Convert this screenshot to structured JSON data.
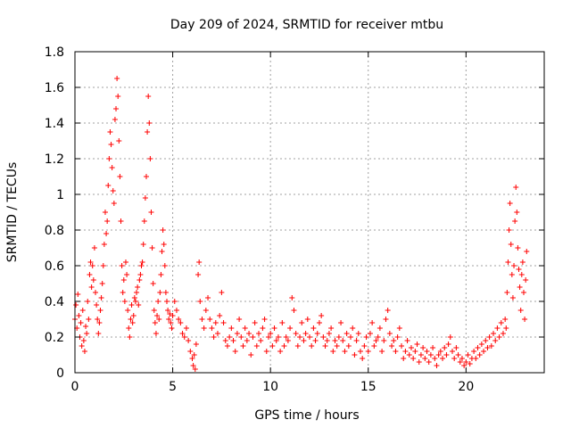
{
  "chart_data": {
    "type": "scatter",
    "title": "Day 209 of 2024, SRMTID for receiver mtbu",
    "xlabel": "GPS time / hours",
    "ylabel": "SRMTID / TECUs",
    "xlim": [
      0,
      24
    ],
    "ylim": [
      0,
      1.8
    ],
    "xticks": [
      0,
      5,
      10,
      15,
      20
    ],
    "xtick_labels": [
      "0",
      "5",
      "10",
      "15",
      "20"
    ],
    "yticks": [
      0,
      0.2,
      0.4,
      0.6,
      0.8,
      1.0,
      1.2,
      1.4,
      1.6,
      1.8
    ],
    "ytick_labels": [
      "0",
      "0.2",
      "0.4",
      "0.6",
      "0.8",
      "1",
      "1.2",
      "1.4",
      "1.6",
      "1.8"
    ],
    "grid": true,
    "marker": "plus",
    "color": "#ff0000",
    "series": [
      {
        "name": "SRMTID",
        "points": [
          [
            0.0,
            0.3
          ],
          [
            0.05,
            0.38
          ],
          [
            0.1,
            0.25
          ],
          [
            0.15,
            0.44
          ],
          [
            0.2,
            0.32
          ],
          [
            0.25,
            0.2
          ],
          [
            0.3,
            0.28
          ],
          [
            0.35,
            0.15
          ],
          [
            0.4,
            0.35
          ],
          [
            0.45,
            0.18
          ],
          [
            0.5,
            0.12
          ],
          [
            0.55,
            0.26
          ],
          [
            0.6,
            0.22
          ],
          [
            0.65,
            0.4
          ],
          [
            0.7,
            0.3
          ],
          [
            0.75,
            0.55
          ],
          [
            0.8,
            0.62
          ],
          [
            0.85,
            0.48
          ],
          [
            0.9,
            0.6
          ],
          [
            0.95,
            0.52
          ],
          [
            1.0,
            0.7
          ],
          [
            1.05,
            0.45
          ],
          [
            1.1,
            0.38
          ],
          [
            1.15,
            0.3
          ],
          [
            1.2,
            0.22
          ],
          [
            1.25,
            0.28
          ],
          [
            1.3,
            0.35
          ],
          [
            1.35,
            0.42
          ],
          [
            1.4,
            0.5
          ],
          [
            1.45,
            0.6
          ],
          [
            1.5,
            0.72
          ],
          [
            1.55,
            0.9
          ],
          [
            1.6,
            0.78
          ],
          [
            1.65,
            0.85
          ],
          [
            1.7,
            1.05
          ],
          [
            1.75,
            1.2
          ],
          [
            1.8,
            1.35
          ],
          [
            1.85,
            1.28
          ],
          [
            1.9,
            1.15
          ],
          [
            1.95,
            1.02
          ],
          [
            2.0,
            0.95
          ],
          [
            2.05,
            1.42
          ],
          [
            2.1,
            1.48
          ],
          [
            2.15,
            1.65
          ],
          [
            2.2,
            1.55
          ],
          [
            2.25,
            1.3
          ],
          [
            2.3,
            1.1
          ],
          [
            2.35,
            0.85
          ],
          [
            2.4,
            0.6
          ],
          [
            2.45,
            0.45
          ],
          [
            2.5,
            0.52
          ],
          [
            2.55,
            0.4
          ],
          [
            2.6,
            0.62
          ],
          [
            2.65,
            0.55
          ],
          [
            2.7,
            0.35
          ],
          [
            2.75,
            0.25
          ],
          [
            2.8,
            0.2
          ],
          [
            2.85,
            0.3
          ],
          [
            2.9,
            0.38
          ],
          [
            2.95,
            0.28
          ],
          [
            3.0,
            0.32
          ],
          [
            3.05,
            0.42
          ],
          [
            3.1,
            0.4
          ],
          [
            3.15,
            0.45
          ],
          [
            3.2,
            0.48
          ],
          [
            3.25,
            0.38
          ],
          [
            3.3,
            0.52
          ],
          [
            3.35,
            0.55
          ],
          [
            3.4,
            0.6
          ],
          [
            3.45,
            0.62
          ],
          [
            3.5,
            0.72
          ],
          [
            3.55,
            0.85
          ],
          [
            3.6,
            0.98
          ],
          [
            3.65,
            1.1
          ],
          [
            3.7,
            1.35
          ],
          [
            3.75,
            1.55
          ],
          [
            3.8,
            1.4
          ],
          [
            3.85,
            1.2
          ],
          [
            3.9,
            0.9
          ],
          [
            3.95,
            0.7
          ],
          [
            4.0,
            0.5
          ],
          [
            4.05,
            0.35
          ],
          [
            4.1,
            0.28
          ],
          [
            4.15,
            0.22
          ],
          [
            4.2,
            0.32
          ],
          [
            4.25,
            0.4
          ],
          [
            4.3,
            0.3
          ],
          [
            4.35,
            0.45
          ],
          [
            4.4,
            0.55
          ],
          [
            4.45,
            0.68
          ],
          [
            4.5,
            0.8
          ],
          [
            4.55,
            0.72
          ],
          [
            4.6,
            0.6
          ],
          [
            4.65,
            0.45
          ],
          [
            4.7,
            0.4
          ],
          [
            4.75,
            0.35
          ],
          [
            4.8,
            0.3
          ],
          [
            4.85,
            0.33
          ],
          [
            4.9,
            0.28
          ],
          [
            4.95,
            0.25
          ],
          [
            5.0,
            0.32
          ],
          [
            5.1,
            0.4
          ],
          [
            5.2,
            0.35
          ],
          [
            5.3,
            0.3
          ],
          [
            5.4,
            0.28
          ],
          [
            5.5,
            0.22
          ],
          [
            5.6,
            0.2
          ],
          [
            5.7,
            0.25
          ],
          [
            5.8,
            0.18
          ],
          [
            5.9,
            0.12
          ],
          [
            6.0,
            0.08
          ],
          [
            6.05,
            0.04
          ],
          [
            6.1,
            0.1
          ],
          [
            6.15,
            0.02
          ],
          [
            6.2,
            0.16
          ],
          [
            6.3,
            0.55
          ],
          [
            6.35,
            0.62
          ],
          [
            6.4,
            0.4
          ],
          [
            6.5,
            0.3
          ],
          [
            6.6,
            0.25
          ],
          [
            6.7,
            0.35
          ],
          [
            6.8,
            0.42
          ],
          [
            6.9,
            0.3
          ],
          [
            7.0,
            0.25
          ],
          [
            7.1,
            0.2
          ],
          [
            7.2,
            0.28
          ],
          [
            7.3,
            0.22
          ],
          [
            7.4,
            0.32
          ],
          [
            7.5,
            0.45
          ],
          [
            7.6,
            0.28
          ],
          [
            7.7,
            0.18
          ],
          [
            7.8,
            0.15
          ],
          [
            7.9,
            0.2
          ],
          [
            8.0,
            0.25
          ],
          [
            8.1,
            0.18
          ],
          [
            8.2,
            0.12
          ],
          [
            8.3,
            0.22
          ],
          [
            8.4,
            0.3
          ],
          [
            8.5,
            0.2
          ],
          [
            8.6,
            0.15
          ],
          [
            8.7,
            0.25
          ],
          [
            8.8,
            0.18
          ],
          [
            8.9,
            0.22
          ],
          [
            9.0,
            0.1
          ],
          [
            9.1,
            0.2
          ],
          [
            9.2,
            0.28
          ],
          [
            9.3,
            0.15
          ],
          [
            9.4,
            0.22
          ],
          [
            9.5,
            0.18
          ],
          [
            9.6,
            0.25
          ],
          [
            9.7,
            0.3
          ],
          [
            9.8,
            0.12
          ],
          [
            9.9,
            0.2
          ],
          [
            10.0,
            0.22
          ],
          [
            10.1,
            0.15
          ],
          [
            10.2,
            0.25
          ],
          [
            10.3,
            0.18
          ],
          [
            10.4,
            0.2
          ],
          [
            10.5,
            0.12
          ],
          [
            10.6,
            0.28
          ],
          [
            10.7,
            0.15
          ],
          [
            10.8,
            0.2
          ],
          [
            10.9,
            0.18
          ],
          [
            11.0,
            0.25
          ],
          [
            11.1,
            0.42
          ],
          [
            11.2,
            0.35
          ],
          [
            11.3,
            0.22
          ],
          [
            11.4,
            0.15
          ],
          [
            11.5,
            0.2
          ],
          [
            11.6,
            0.28
          ],
          [
            11.7,
            0.18
          ],
          [
            11.8,
            0.22
          ],
          [
            11.9,
            0.3
          ],
          [
            12.0,
            0.2
          ],
          [
            12.1,
            0.15
          ],
          [
            12.2,
            0.25
          ],
          [
            12.3,
            0.18
          ],
          [
            12.4,
            0.22
          ],
          [
            12.5,
            0.28
          ],
          [
            12.6,
            0.32
          ],
          [
            12.7,
            0.2
          ],
          [
            12.8,
            0.15
          ],
          [
            12.9,
            0.18
          ],
          [
            13.0,
            0.22
          ],
          [
            13.1,
            0.25
          ],
          [
            13.2,
            0.12
          ],
          [
            13.3,
            0.18
          ],
          [
            13.4,
            0.15
          ],
          [
            13.5,
            0.2
          ],
          [
            13.6,
            0.28
          ],
          [
            13.7,
            0.18
          ],
          [
            13.8,
            0.12
          ],
          [
            13.9,
            0.22
          ],
          [
            14.0,
            0.15
          ],
          [
            14.1,
            0.2
          ],
          [
            14.2,
            0.25
          ],
          [
            14.3,
            0.1
          ],
          [
            14.4,
            0.18
          ],
          [
            14.5,
            0.22
          ],
          [
            14.6,
            0.12
          ],
          [
            14.7,
            0.08
          ],
          [
            14.8,
            0.15
          ],
          [
            14.9,
            0.2
          ],
          [
            15.0,
            0.12
          ],
          [
            15.1,
            0.22
          ],
          [
            15.2,
            0.28
          ],
          [
            15.3,
            0.15
          ],
          [
            15.4,
            0.18
          ],
          [
            15.5,
            0.2
          ],
          [
            15.6,
            0.25
          ],
          [
            15.7,
            0.12
          ],
          [
            15.8,
            0.18
          ],
          [
            15.9,
            0.3
          ],
          [
            16.0,
            0.35
          ],
          [
            16.1,
            0.22
          ],
          [
            16.2,
            0.15
          ],
          [
            16.3,
            0.18
          ],
          [
            16.4,
            0.12
          ],
          [
            16.5,
            0.2
          ],
          [
            16.6,
            0.25
          ],
          [
            16.7,
            0.15
          ],
          [
            16.8,
            0.08
          ],
          [
            16.9,
            0.12
          ],
          [
            17.0,
            0.18
          ],
          [
            17.1,
            0.1
          ],
          [
            17.2,
            0.14
          ],
          [
            17.3,
            0.08
          ],
          [
            17.4,
            0.12
          ],
          [
            17.5,
            0.16
          ],
          [
            17.6,
            0.06
          ],
          [
            17.7,
            0.1
          ],
          [
            17.8,
            0.14
          ],
          [
            17.9,
            0.08
          ],
          [
            18.0,
            0.12
          ],
          [
            18.1,
            0.06
          ],
          [
            18.2,
            0.1
          ],
          [
            18.3,
            0.14
          ],
          [
            18.4,
            0.08
          ],
          [
            18.5,
            0.04
          ],
          [
            18.6,
            0.1
          ],
          [
            18.7,
            0.12
          ],
          [
            18.8,
            0.08
          ],
          [
            18.9,
            0.14
          ],
          [
            19.0,
            0.1
          ],
          [
            19.1,
            0.16
          ],
          [
            19.2,
            0.2
          ],
          [
            19.3,
            0.12
          ],
          [
            19.4,
            0.08
          ],
          [
            19.5,
            0.14
          ],
          [
            19.6,
            0.1
          ],
          [
            19.7,
            0.06
          ],
          [
            19.8,
            0.08
          ],
          [
            19.9,
            0.04
          ],
          [
            20.0,
            0.06
          ],
          [
            20.1,
            0.1
          ],
          [
            20.2,
            0.05
          ],
          [
            20.3,
            0.08
          ],
          [
            20.4,
            0.12
          ],
          [
            20.5,
            0.08
          ],
          [
            20.6,
            0.14
          ],
          [
            20.7,
            0.1
          ],
          [
            20.8,
            0.16
          ],
          [
            20.9,
            0.12
          ],
          [
            21.0,
            0.18
          ],
          [
            21.1,
            0.14
          ],
          [
            21.2,
            0.2
          ],
          [
            21.3,
            0.15
          ],
          [
            21.4,
            0.22
          ],
          [
            21.5,
            0.18
          ],
          [
            21.6,
            0.25
          ],
          [
            21.7,
            0.2
          ],
          [
            21.8,
            0.28
          ],
          [
            21.9,
            0.22
          ],
          [
            22.0,
            0.3
          ],
          [
            22.05,
            0.25
          ],
          [
            22.1,
            0.45
          ],
          [
            22.15,
            0.62
          ],
          [
            22.2,
            0.8
          ],
          [
            22.25,
            0.95
          ],
          [
            22.3,
            0.72
          ],
          [
            22.35,
            0.55
          ],
          [
            22.4,
            0.42
          ],
          [
            22.45,
            0.6
          ],
          [
            22.5,
            0.85
          ],
          [
            22.55,
            1.04
          ],
          [
            22.6,
            0.9
          ],
          [
            22.65,
            0.7
          ],
          [
            22.7,
            0.58
          ],
          [
            22.75,
            0.48
          ],
          [
            22.8,
            0.35
          ],
          [
            22.85,
            0.55
          ],
          [
            22.9,
            0.62
          ],
          [
            22.95,
            0.45
          ],
          [
            23.0,
            0.3
          ],
          [
            23.05,
            0.52
          ],
          [
            23.1,
            0.68
          ]
        ]
      }
    ]
  }
}
